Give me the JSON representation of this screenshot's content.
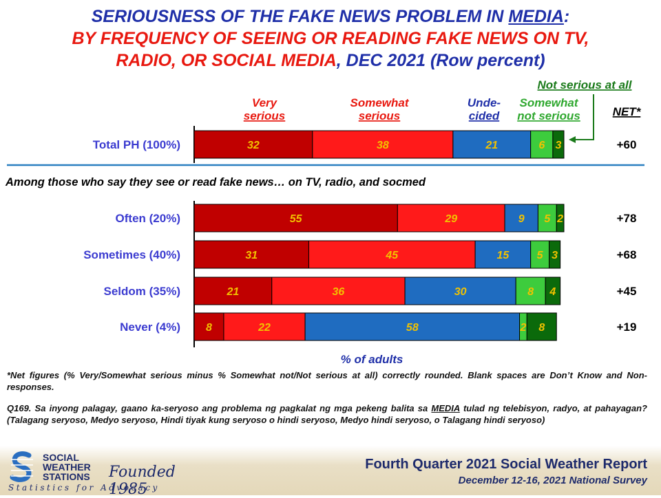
{
  "title": {
    "line1_a": "SERIOUSNESS OF THE FAKE NEWS PROBLEM IN ",
    "line1_b": "MEDIA",
    "line1_c": ":",
    "line2": "BY FREQUENCY OF SEEING OR READING FAKE NEWS ON TV,",
    "line3_a": "RADIO, OR SOCIAL MEDIA",
    "line3_b": ", DEC 2021 (Row percent)"
  },
  "chart_data": {
    "type": "bar",
    "orientation": "horizontal",
    "stacked": true,
    "xlabel": "% of adults",
    "categories": [
      "Total PH (100%)",
      "Often (20%)",
      "Sometimes (40%)",
      "Seldom (35%)",
      "Never (4%)"
    ],
    "series": [
      {
        "name": "Very serious",
        "color": "#c00000",
        "label_color": "#f2c200",
        "values": [
          32,
          55,
          31,
          21,
          8
        ]
      },
      {
        "name": "Somewhat serious",
        "color": "#ff1a1a",
        "label_color": "#f2c200",
        "values": [
          38,
          29,
          45,
          36,
          22
        ]
      },
      {
        "name": "Unde-cided",
        "color": "#1f6cc0",
        "label_color": "#f2c200",
        "values": [
          21,
          9,
          15,
          30,
          58
        ]
      },
      {
        "name": "Somewhat not serious",
        "color": "#3dcc3d",
        "label_color": "#f2c200",
        "values": [
          6,
          5,
          5,
          8,
          2
        ]
      },
      {
        "name": "Not serious at all",
        "color": "#0b6a0b",
        "label_color": "#f2c200",
        "values": [
          3,
          2,
          3,
          4,
          8
        ]
      }
    ],
    "net_header": "NET*",
    "net": [
      "+60",
      "+78",
      "+68",
      "+45",
      "+19"
    ],
    "section_label": "Among those who say they see or read fake news… on TV, radio, and socmed",
    "legend_labels": [
      {
        "line1": "Very",
        "line2": "serious",
        "color": "#e8180f"
      },
      {
        "line1": "Somewhat",
        "line2": "serious",
        "color": "#e8180f"
      },
      {
        "line1": "Unde-",
        "line2": "cided",
        "color": "#1f2fa8"
      },
      {
        "line1": "Somewhat",
        "line2": "not serious",
        "color": "#2fa82f"
      },
      {
        "line1": "Not serious at all",
        "line2": "",
        "color": "#1a7a1a"
      }
    ]
  },
  "notes": {
    "net_note": "*Net figures (% Very/Somewhat serious minus % Somewhat not/Not serious at all) correctly rounded. Blank spaces are Don’t Know and Non-responses.",
    "question_a": "Q169. Sa inyong palagay, gaano ka-seryoso ang problema ng pagkalat ng mga pekeng balita sa ",
    "question_b": "MEDIA",
    "question_c": " tulad ng telebisyon, radyo, at pahayagan? (Talagang seryoso, Medyo seryoso, Hindi tiyak kung seryoso o hindi seryoso, Medyo hindi seryoso, o Talagang hindi seryoso)"
  },
  "footer": {
    "brand_line1": "SOCIAL",
    "brand_line2": "WEATHER",
    "brand_line3": "STATIONS",
    "founded": "Founded 1985",
    "tagline": "Statistics for Advocacy",
    "report_title": "Fourth Quarter 2021 Social Weather Report",
    "report_subtitle": "December 12-16, 2021 National Survey"
  },
  "colors": {
    "title_blue": "#1f2fa8",
    "title_red": "#e8180f",
    "rule_blue": "#2a7fc0",
    "category_blue": "#3b3bd0"
  }
}
